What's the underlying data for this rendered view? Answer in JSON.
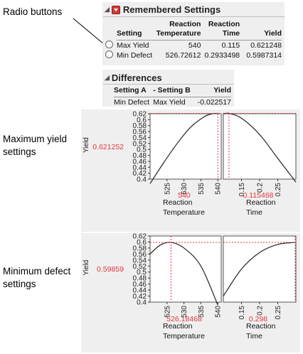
{
  "callouts": {
    "radio": "Radio buttons",
    "max_line1": "Maximum yield",
    "max_line2": "settings",
    "min_line1": "Minimum defect",
    "min_line2": "settings"
  },
  "remembered": {
    "title": "Remembered Settings",
    "headers": {
      "setting": "Setting",
      "temp_line1": "Reaction",
      "temp_line2": "Temperature",
      "time_line1": "Reaction",
      "time_line2": "Time",
      "yield": "Yield"
    },
    "rows": [
      {
        "setting": "Max Yield",
        "temp": "540",
        "time": "0.115",
        "yield": "0.621248",
        "selected": false
      },
      {
        "setting": "Min Defect",
        "temp": "526.72612",
        "time": "0.2933498",
        "yield": "0.5987314",
        "selected": false
      }
    ]
  },
  "differences": {
    "title": "Differences",
    "headers": {
      "a": "Setting A",
      "b": "- Setting B",
      "yield": "Yield"
    },
    "row": {
      "a": "Min Defect",
      "b": "Max Yield",
      "yield": "-0.022517"
    }
  },
  "profilers": {
    "ylabel": "Yield",
    "xlabels": {
      "temp_line1": "Reaction",
      "temp_line2": "Temperature",
      "time_line1": "Reaction",
      "time_line2": "Time"
    },
    "y_ticks": [
      "0.62",
      "0.6",
      "0.58",
      "0.56",
      "0.54",
      "0.52",
      "0.5",
      "0.48",
      "0.46",
      "0.44",
      "0.42",
      "0.4"
    ],
    "temp_ticks": [
      "525",
      "530",
      "535",
      "540"
    ],
    "time_ticks": [
      "0.15",
      "0.2",
      "0.25"
    ],
    "top": {
      "yield_value": "0.621252",
      "temp_value": "540",
      "time_value": "0.115468"
    },
    "bottom": {
      "yield_value": "0.59859",
      "temp_value": "526.18468",
      "time_value": "0.298"
    }
  },
  "colors": {
    "accent_red": "#e0393e",
    "panel_bg": "#efefef",
    "menu_red": "#d23b3b"
  },
  "chart_data": [
    {
      "type": "line",
      "title": "Maximum yield settings",
      "ylabel": "Yield",
      "ylim": [
        0.4,
        0.62
      ],
      "grid": false,
      "series": [
        {
          "x_label": "Reaction Temperature",
          "xlim": [
            520,
            541
          ],
          "x": [
            520,
            524,
            528,
            532,
            536,
            538,
            540
          ],
          "values": [
            0.385,
            0.455,
            0.52,
            0.575,
            0.61,
            0.619,
            0.621252
          ]
        },
        {
          "x_label": "Reaction Time",
          "xlim": [
            0.1,
            0.3
          ],
          "x": [
            0.1,
            0.115468,
            0.15,
            0.2,
            0.25,
            0.3
          ],
          "values": [
            0.619,
            0.621252,
            0.605,
            0.55,
            0.47,
            0.39
          ]
        }
      ],
      "current": {
        "temp": 540,
        "time": 0.115468,
        "yield": 0.621252
      }
    },
    {
      "type": "line",
      "title": "Minimum defect settings",
      "ylabel": "Yield",
      "ylim": [
        0.4,
        0.62
      ],
      "grid": false,
      "series": [
        {
          "x_label": "Reaction Temperature",
          "xlim": [
            520,
            541
          ],
          "x": [
            520,
            523,
            526.18468,
            530,
            535,
            540
          ],
          "values": [
            0.56,
            0.59,
            0.59859,
            0.58,
            0.52,
            0.39
          ]
        },
        {
          "x_label": "Reaction Time",
          "xlim": [
            0.1,
            0.3
          ],
          "x": [
            0.1,
            0.15,
            0.2,
            0.25,
            0.298
          ],
          "values": [
            0.42,
            0.51,
            0.565,
            0.592,
            0.59859
          ]
        }
      ],
      "current": {
        "temp": 526.18468,
        "time": 0.298,
        "yield": 0.59859
      }
    }
  ]
}
